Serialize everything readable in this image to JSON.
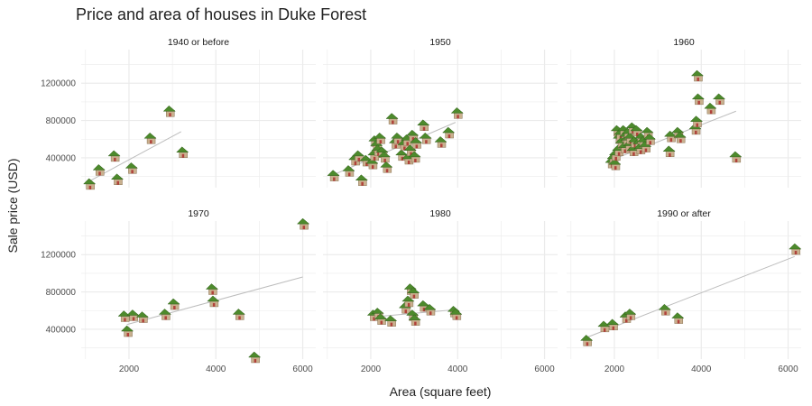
{
  "chart_data": {
    "type": "scatter",
    "title": "Price and area of houses in Duke Forest",
    "xlabel": "Area (square feet)",
    "ylabel": "Sale price (USD)",
    "xlim": [
      900,
      6300
    ],
    "ylim": [
      80000,
      1560000
    ],
    "x_ticks": [
      2000,
      4000,
      6000
    ],
    "y_ticks": [
      400000,
      800000,
      1200000
    ],
    "grid": true,
    "marker": "house-icon",
    "colors": {
      "grid": "#ebebeb",
      "trend": "#bdbdbd",
      "text": "#222222",
      "tick": "#4d4d4d",
      "roof": "#4d8a2c",
      "wall": "#c9b08e",
      "door": "#b0413a"
    },
    "panels": [
      {
        "label": "1940 or before",
        "trend": {
          "x": [
            1050,
            3200
          ],
          "y": [
            140000,
            680000
          ]
        },
        "points": [
          {
            "x": 1080,
            "y": 110000
          },
          {
            "x": 1300,
            "y": 260000
          },
          {
            "x": 1650,
            "y": 410000
          },
          {
            "x": 1720,
            "y": 160000
          },
          {
            "x": 2050,
            "y": 280000
          },
          {
            "x": 2480,
            "y": 600000
          },
          {
            "x": 2920,
            "y": 890000
          },
          {
            "x": 3220,
            "y": 450000
          }
        ]
      },
      {
        "label": "1950",
        "trend": {
          "x": [
            1100,
            3950
          ],
          "y": [
            210000,
            780000
          ]
        },
        "points": [
          {
            "x": 1130,
            "y": 200000
          },
          {
            "x": 1480,
            "y": 250000
          },
          {
            "x": 1620,
            "y": 370000
          },
          {
            "x": 1700,
            "y": 410000
          },
          {
            "x": 1780,
            "y": 150000
          },
          {
            "x": 1880,
            "y": 360000
          },
          {
            "x": 2020,
            "y": 330000
          },
          {
            "x": 2060,
            "y": 420000
          },
          {
            "x": 2080,
            "y": 570000
          },
          {
            "x": 2120,
            "y": 520000
          },
          {
            "x": 2150,
            "y": 470000
          },
          {
            "x": 2200,
            "y": 600000
          },
          {
            "x": 2250,
            "y": 450000
          },
          {
            "x": 2300,
            "y": 400000
          },
          {
            "x": 2350,
            "y": 290000
          },
          {
            "x": 2480,
            "y": 810000
          },
          {
            "x": 2550,
            "y": 550000
          },
          {
            "x": 2600,
            "y": 600000
          },
          {
            "x": 2700,
            "y": 420000
          },
          {
            "x": 2750,
            "y": 530000
          },
          {
            "x": 2820,
            "y": 580000
          },
          {
            "x": 2850,
            "y": 380000
          },
          {
            "x": 2900,
            "y": 470000
          },
          {
            "x": 2950,
            "y": 630000
          },
          {
            "x": 3000,
            "y": 400000
          },
          {
            "x": 3030,
            "y": 550000
          },
          {
            "x": 3200,
            "y": 740000
          },
          {
            "x": 3250,
            "y": 600000
          },
          {
            "x": 3600,
            "y": 560000
          },
          {
            "x": 3780,
            "y": 660000
          },
          {
            "x": 3980,
            "y": 870000
          }
        ]
      },
      {
        "label": "1960",
        "trend": {
          "x": [
            1900,
            4800
          ],
          "y": [
            370000,
            900000
          ]
        },
        "points": [
          {
            "x": 1920,
            "y": 340000
          },
          {
            "x": 1960,
            "y": 380000
          },
          {
            "x": 2000,
            "y": 320000
          },
          {
            "x": 2010,
            "y": 420000
          },
          {
            "x": 2050,
            "y": 680000
          },
          {
            "x": 2080,
            "y": 470000
          },
          {
            "x": 2100,
            "y": 600000
          },
          {
            "x": 2120,
            "y": 640000
          },
          {
            "x": 2150,
            "y": 550000
          },
          {
            "x": 2200,
            "y": 680000
          },
          {
            "x": 2220,
            "y": 500000
          },
          {
            "x": 2250,
            "y": 620000
          },
          {
            "x": 2280,
            "y": 580000
          },
          {
            "x": 2300,
            "y": 650000
          },
          {
            "x": 2330,
            "y": 520000
          },
          {
            "x": 2350,
            "y": 600000
          },
          {
            "x": 2400,
            "y": 710000
          },
          {
            "x": 2420,
            "y": 470000
          },
          {
            "x": 2450,
            "y": 560000
          },
          {
            "x": 2500,
            "y": 680000
          },
          {
            "x": 2550,
            "y": 540000
          },
          {
            "x": 2580,
            "y": 490000
          },
          {
            "x": 2600,
            "y": 600000
          },
          {
            "x": 2650,
            "y": 560000
          },
          {
            "x": 2700,
            "y": 510000
          },
          {
            "x": 2750,
            "y": 660000
          },
          {
            "x": 2800,
            "y": 590000
          },
          {
            "x": 3250,
            "y": 460000
          },
          {
            "x": 3280,
            "y": 620000
          },
          {
            "x": 3450,
            "y": 660000
          },
          {
            "x": 3500,
            "y": 610000
          },
          {
            "x": 3850,
            "y": 700000
          },
          {
            "x": 3880,
            "y": 780000
          },
          {
            "x": 3900,
            "y": 1270000
          },
          {
            "x": 3920,
            "y": 1020000
          },
          {
            "x": 4200,
            "y": 920000
          },
          {
            "x": 4400,
            "y": 1020000
          },
          {
            "x": 4780,
            "y": 400000
          }
        ]
      },
      {
        "label": "1970",
        "trend": {
          "x": [
            1950,
            6000
          ],
          "y": [
            450000,
            960000
          ]
        },
        "points": [
          {
            "x": 1880,
            "y": 530000
          },
          {
            "x": 1950,
            "y": 370000
          },
          {
            "x": 2080,
            "y": 540000
          },
          {
            "x": 2300,
            "y": 520000
          },
          {
            "x": 2820,
            "y": 550000
          },
          {
            "x": 3020,
            "y": 660000
          },
          {
            "x": 3900,
            "y": 820000
          },
          {
            "x": 3930,
            "y": 690000
          },
          {
            "x": 4520,
            "y": 550000
          },
          {
            "x": 4880,
            "y": 90000
          },
          {
            "x": 6000,
            "y": 1520000
          }
        ]
      },
      {
        "label": "1980",
        "trend": {
          "x": [
            2000,
            3950
          ],
          "y": [
            530000,
            610000
          ]
        },
        "points": [
          {
            "x": 2050,
            "y": 540000
          },
          {
            "x": 2150,
            "y": 560000
          },
          {
            "x": 2220,
            "y": 500000
          },
          {
            "x": 2450,
            "y": 480000
          },
          {
            "x": 2780,
            "y": 620000
          },
          {
            "x": 2850,
            "y": 690000
          },
          {
            "x": 2900,
            "y": 820000
          },
          {
            "x": 2950,
            "y": 540000
          },
          {
            "x": 2970,
            "y": 780000
          },
          {
            "x": 3000,
            "y": 490000
          },
          {
            "x": 3200,
            "y": 640000
          },
          {
            "x": 3350,
            "y": 600000
          },
          {
            "x": 3900,
            "y": 580000
          },
          {
            "x": 3950,
            "y": 550000
          }
        ]
      },
      {
        "label": "1990 or after",
        "trend": {
          "x": [
            1350,
            6150
          ],
          "y": [
            310000,
            1180000
          ]
        },
        "points": [
          {
            "x": 1350,
            "y": 270000
          },
          {
            "x": 1750,
            "y": 420000
          },
          {
            "x": 1950,
            "y": 440000
          },
          {
            "x": 2250,
            "y": 520000
          },
          {
            "x": 2350,
            "y": 550000
          },
          {
            "x": 3150,
            "y": 600000
          },
          {
            "x": 3450,
            "y": 510000
          },
          {
            "x": 6150,
            "y": 1250000
          }
        ]
      }
    ]
  }
}
